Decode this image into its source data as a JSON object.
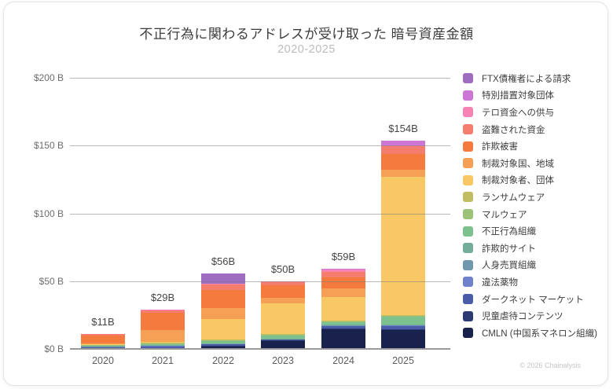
{
  "header": {
    "title": "不正行為に関わるアドレスが受け取った 暗号資産金額",
    "subtitle": "2020-2025"
  },
  "attribution": "© 2026 Chainalysis",
  "chart_data": {
    "type": "bar",
    "stacked": true,
    "title": "不正行為に関わるアドレスが受け取った 暗号資産金額",
    "subtitle": "2020-2025",
    "xlabel": "",
    "ylabel": "",
    "ylim": [
      0,
      200
    ],
    "y_ticks": [
      {
        "value": 0,
        "label": "$0 B"
      },
      {
        "value": 50,
        "label": "$50 B"
      },
      {
        "value": 100,
        "label": "$100 B"
      },
      {
        "value": 150,
        "label": "$150 B"
      },
      {
        "value": 200,
        "label": "$200 B"
      }
    ],
    "grid": true,
    "legend_position": "right",
    "categories": [
      "2020",
      "2021",
      "2022",
      "2023",
      "2024",
      "2025"
    ],
    "totals_labels": [
      "$11B",
      "$29B",
      "$56B",
      "$50B",
      "$59B",
      "$154B"
    ],
    "totals_values": [
      11,
      29,
      56,
      50,
      59,
      154
    ],
    "series": [
      {
        "name": "CMLN (中国系マネロン組織)",
        "color": "#18224d",
        "values": [
          0,
          0,
          2,
          6,
          15,
          14
        ]
      },
      {
        "name": "児童虐待コンテンツ",
        "color": "#2b3a70",
        "values": [
          0.2,
          0.3,
          0.3,
          0.3,
          0.3,
          0.3
        ]
      },
      {
        "name": "ダークネット マーケット",
        "color": "#4a5ca8",
        "values": [
          1.5,
          2,
          1.2,
          0.8,
          1.5,
          2.5
        ]
      },
      {
        "name": "違法薬物",
        "color": "#6e82cc",
        "values": [
          0.2,
          0.3,
          0.3,
          0.3,
          0.5,
          0.7
        ]
      },
      {
        "name": "人身売買組織",
        "color": "#6f97ad",
        "values": [
          0.1,
          0.1,
          0.1,
          0.1,
          0.2,
          0.2
        ]
      },
      {
        "name": "詐欺的サイト",
        "color": "#74ad99",
        "values": [
          0.2,
          0.3,
          0.3,
          0.3,
          0.3,
          0.5
        ]
      },
      {
        "name": "不正行為組織",
        "color": "#7dc28e",
        "values": [
          0.8,
          1.2,
          2.2,
          2.7,
          2.5,
          6
        ]
      },
      {
        "name": "マルウェア",
        "color": "#9cc277",
        "values": [
          0.1,
          0.1,
          0.2,
          0.1,
          0.1,
          0.2
        ]
      },
      {
        "name": "ランサムウェア",
        "color": "#c2bd62",
        "values": [
          0.3,
          0.5,
          0.4,
          0.6,
          0.5,
          0.5
        ]
      },
      {
        "name": "制裁対象者、団体",
        "color": "#f7c863",
        "values": [
          0.3,
          0.5,
          15,
          22.5,
          17.5,
          102
        ]
      },
      {
        "name": "制裁対象国、地域",
        "color": "#f5a055",
        "values": [
          0.6,
          8.5,
          8,
          4,
          6,
          5
        ]
      },
      {
        "name": "詐欺被害",
        "color": "#f47a3d",
        "values": [
          5.8,
          13,
          13.5,
          9.5,
          8.5,
          12
        ]
      },
      {
        "name": "盗難された資金",
        "color": "#f57d6e",
        "values": [
          1.2,
          2.2,
          4.5,
          2.8,
          4,
          6
        ]
      },
      {
        "name": "テロ資金への供与",
        "color": "#f783b5",
        "values": [
          0,
          0.1,
          0.1,
          0.1,
          1.6,
          0.4
        ]
      },
      {
        "name": "特別措置対象団体",
        "color": "#cc77d4",
        "values": [
          0,
          0,
          0,
          0,
          0.5,
          3.2
        ]
      },
      {
        "name": "FTX債権者による請求",
        "color": "#9e6cc0",
        "values": [
          0,
          0,
          7.5,
          0,
          0,
          0
        ]
      }
    ]
  }
}
